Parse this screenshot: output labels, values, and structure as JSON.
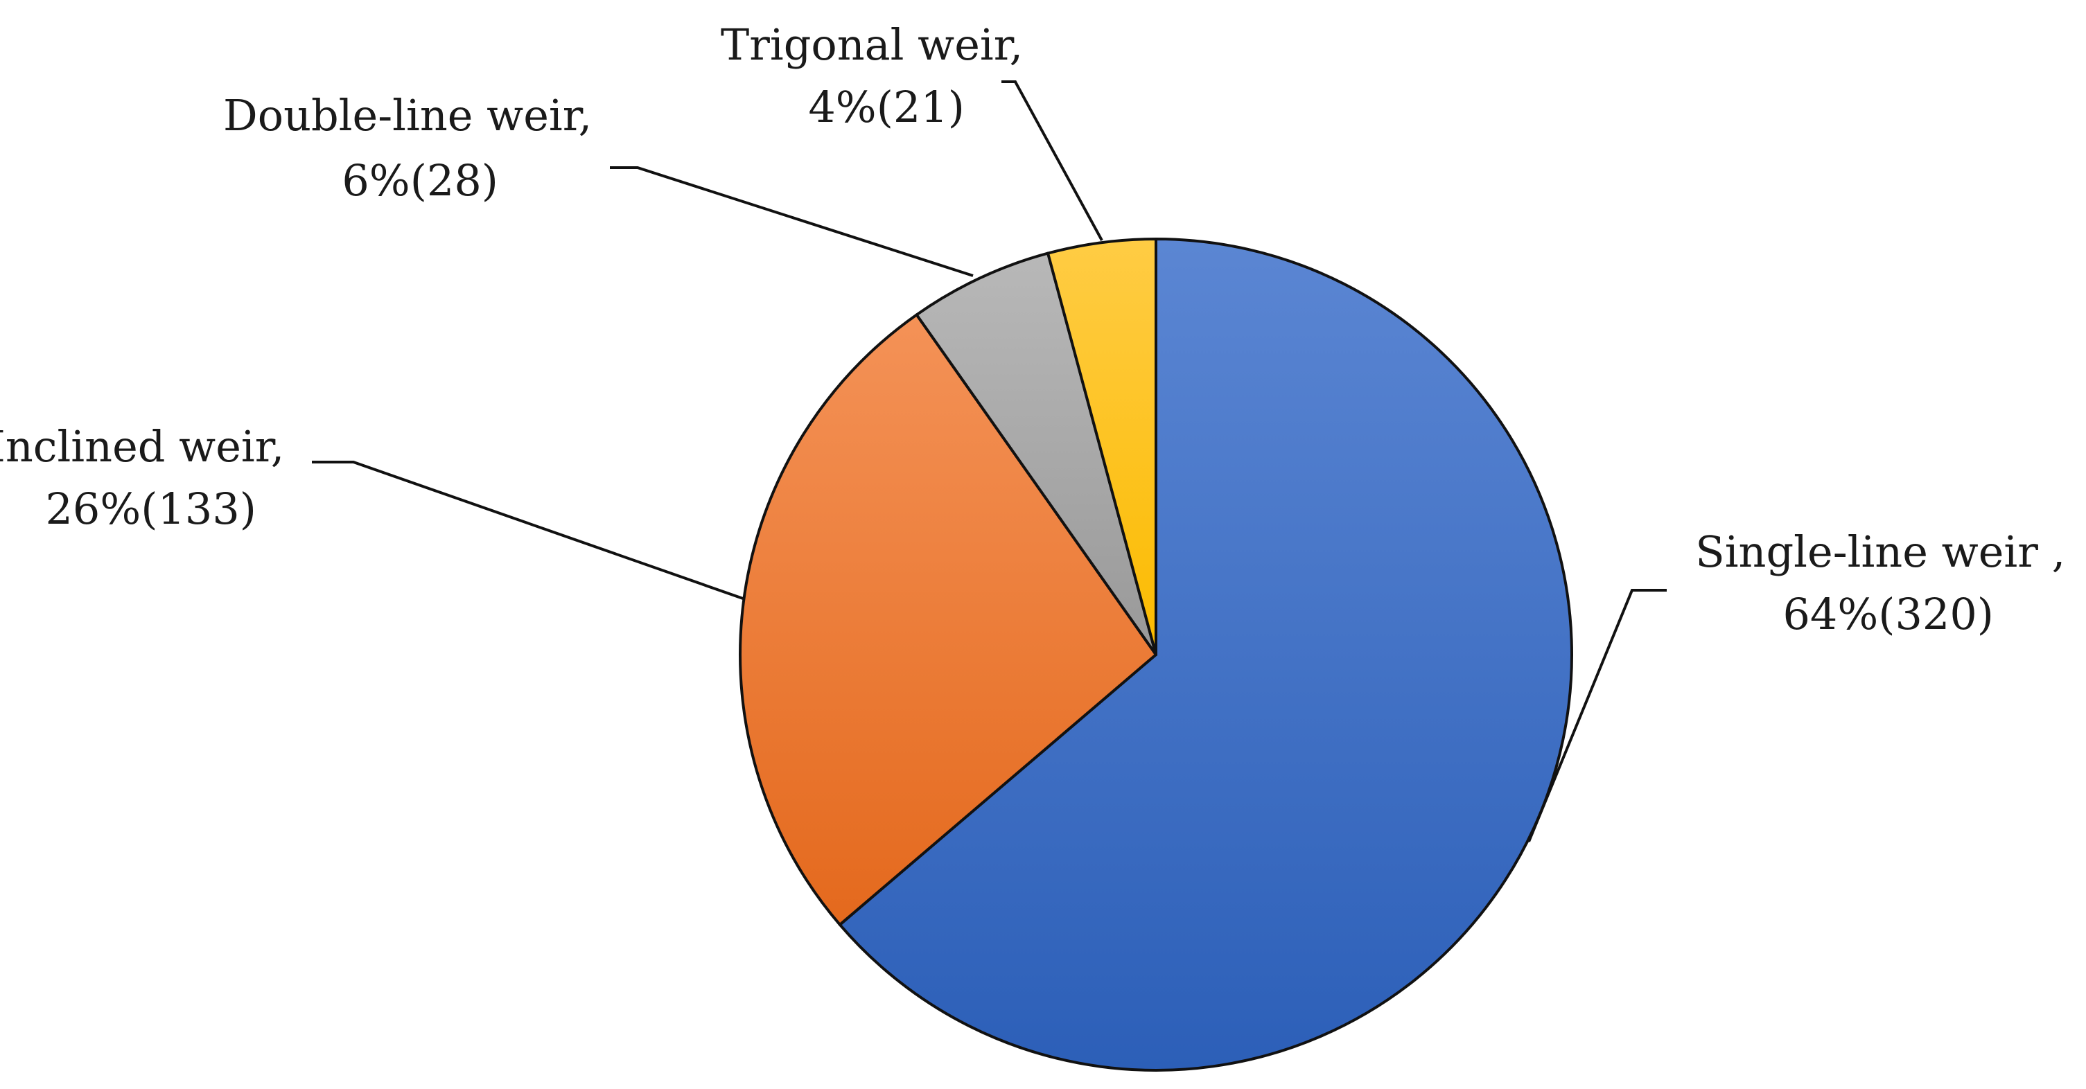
{
  "chart_data": {
    "type": "pie",
    "title": "",
    "slices": [
      {
        "name": "Single-line  weir",
        "percent_label": "64%",
        "count": 320,
        "value_label": "64%(320)",
        "color": "#3b6fcb"
      },
      {
        "name": "Inclined weir",
        "percent_label": "26%",
        "count": 133,
        "value_label": "26%(133)",
        "color": "#ee7a2e"
      },
      {
        "name": "Double-line weir",
        "percent_label": "6%",
        "count": 28,
        "value_label": "6%(28)",
        "color": "#a5a5a5"
      },
      {
        "name": "Trigonal weir",
        "percent_label": "4%",
        "count": 21,
        "value_label": "4%(21)",
        "color": "#fdc010"
      }
    ],
    "label_lines": [
      {
        "name_line": "Single-line  weir ,",
        "value_line": "64%(320)"
      },
      {
        "name_line": "Inclined weir,",
        "value_line": "26%(133)"
      },
      {
        "name_line": "Double-line weir,",
        "value_line": "6%(28)"
      },
      {
        "name_line": "Trigonal weir,",
        "value_line": "4%(21)"
      }
    ],
    "legend": "none",
    "labels_position": "outside with leader lines"
  }
}
